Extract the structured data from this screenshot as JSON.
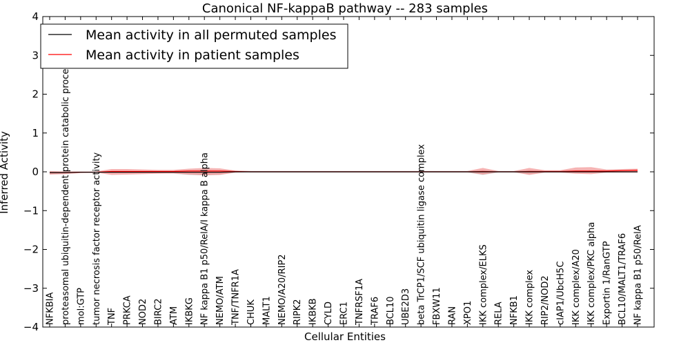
{
  "chart_data": {
    "type": "line",
    "title": "Canonical NF-kappaB pathway -- 283 samples",
    "xlabel": "Cellular Entities",
    "ylabel": "Inferred Activity",
    "ylim": [
      -4,
      4
    ],
    "yticks": [
      -4,
      -3,
      -2,
      -1,
      0,
      1,
      2,
      3,
      4
    ],
    "ytick_labels": [
      "−4",
      "−3",
      "−2",
      "−1",
      "0",
      "1",
      "2",
      "3",
      "4"
    ],
    "legend_position": "top-left",
    "grid": false,
    "categories": [
      "NFKBIA",
      "proteasomal ubiquitin-dependent protein catabolic process",
      "mol:GTP",
      "tumor necrosis factor receptor activity",
      "TNF",
      "PRKCA",
      "NOD2",
      "BIRC2",
      "ATM",
      "IKBKG",
      "NF kappa B1 p50/RelA/I kappa B alpha",
      "NEMO/ATM",
      "TNF/TNFR1A",
      "CHUK",
      "MALT1",
      "NEMO/A20/RIP2",
      "RIPK2",
      "IKBKB",
      "CYLD",
      "ERC1",
      "TNFRSF1A",
      "TRAF6",
      "BCL10",
      "UBE2D3",
      "beta TrCP1/SCF ubiquitin ligase complex",
      "FBXW11",
      "RAN",
      "XPO1",
      "IKK complex/ELKS",
      "RELA",
      "NFKB1",
      "IKK complex",
      "RIP2/NOD2",
      "cIAP1/UbcH5C",
      "IKK complex/A20",
      "IKK complex/PKC alpha",
      "Exportin 1/RanGTP",
      "BCL10/MALT1/TRAF6",
      "NF kappa B1 p50/RelA"
    ],
    "series": [
      {
        "name": "Mean activity in all permuted samples",
        "color": "#000000",
        "values": [
          -0.02,
          -0.02,
          -0.01,
          -0.01,
          -0.01,
          -0.01,
          -0.01,
          -0.01,
          -0.01,
          -0.01,
          -0.01,
          -0.01,
          0,
          0,
          0,
          0,
          0,
          0,
          0,
          0,
          0,
          0,
          0,
          0,
          0,
          0,
          0,
          0,
          0,
          0,
          0,
          0,
          0,
          0,
          0,
          0,
          0,
          0,
          0
        ],
        "lower": [
          -0.06,
          -0.05,
          -0.03,
          -0.03,
          -0.04,
          -0.04,
          -0.04,
          -0.04,
          -0.05,
          -0.08,
          -0.09,
          -0.07,
          -0.02,
          -0.02,
          -0.02,
          -0.02,
          -0.02,
          -0.02,
          -0.02,
          -0.02,
          -0.02,
          -0.02,
          -0.02,
          -0.02,
          -0.02,
          -0.02,
          -0.02,
          -0.02,
          -0.08,
          -0.02,
          -0.02,
          -0.06,
          -0.02,
          -0.02,
          -0.02,
          -0.02,
          -0.02,
          -0.02,
          -0.02
        ],
        "upper": [
          0.02,
          0.01,
          0.01,
          0.01,
          0.02,
          0.02,
          0.02,
          0.02,
          0.02,
          0.04,
          0.05,
          0.04,
          0.02,
          0.02,
          0.02,
          0.02,
          0.02,
          0.02,
          0.02,
          0.02,
          0.02,
          0.02,
          0.02,
          0.02,
          0.02,
          0.02,
          0.02,
          0.02,
          0.04,
          0.02,
          0.02,
          0.04,
          0.02,
          0.02,
          0.02,
          0.02,
          0.02,
          0.02,
          0.02
        ]
      },
      {
        "name": "Mean activity in patient samples",
        "color": "#ff0000",
        "band_color": "#f08080",
        "values": [
          -0.02,
          -0.02,
          -0.01,
          -0.01,
          0.01,
          0.01,
          0.01,
          0.01,
          0.01,
          0.02,
          0.02,
          0.02,
          0.01,
          0,
          0,
          0,
          0,
          0,
          0,
          0,
          0,
          0,
          0,
          0,
          0,
          0,
          0,
          0,
          0.01,
          0,
          0,
          0.01,
          0.01,
          0.01,
          0.02,
          0.02,
          0.02,
          0.03,
          0.04
        ],
        "lower": [
          -0.07,
          -0.06,
          -0.03,
          -0.02,
          -0.08,
          -0.07,
          -0.06,
          -0.05,
          -0.04,
          -0.07,
          -0.09,
          -0.08,
          -0.02,
          -0.01,
          -0.01,
          -0.01,
          -0.01,
          -0.01,
          -0.01,
          -0.01,
          -0.01,
          -0.01,
          -0.01,
          -0.01,
          -0.01,
          -0.01,
          -0.01,
          -0.01,
          -0.07,
          -0.01,
          -0.01,
          -0.08,
          -0.02,
          -0.02,
          -0.05,
          -0.06,
          -0.02,
          -0.02,
          -0.02
        ],
        "upper": [
          0.02,
          0.01,
          0.01,
          0.01,
          0.07,
          0.07,
          0.06,
          0.05,
          0.05,
          0.08,
          0.1,
          0.09,
          0.03,
          0.02,
          0.02,
          0.02,
          0.02,
          0.02,
          0.02,
          0.02,
          0.02,
          0.02,
          0.02,
          0.02,
          0.02,
          0.02,
          0.02,
          0.02,
          0.1,
          0.02,
          0.02,
          0.1,
          0.04,
          0.04,
          0.11,
          0.12,
          0.06,
          0.07,
          0.08
        ]
      }
    ]
  }
}
